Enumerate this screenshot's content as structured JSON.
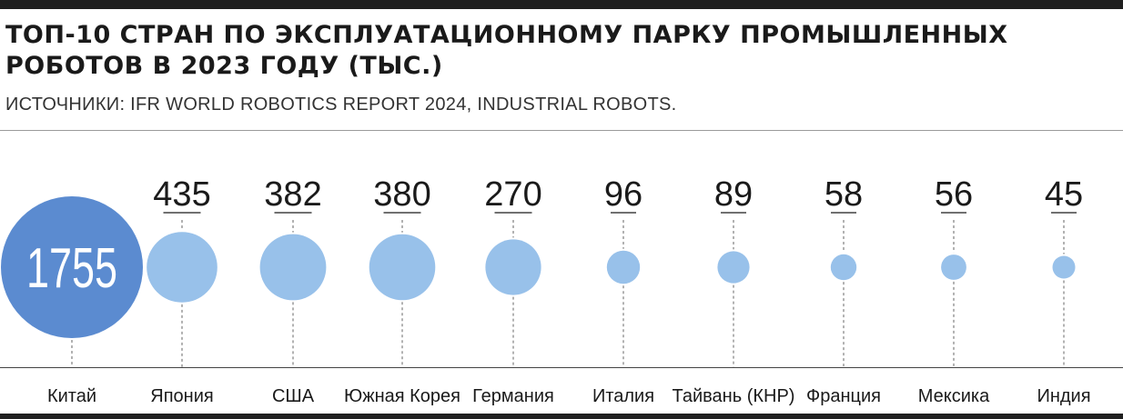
{
  "header": {
    "title": "ТОП-10 СТРАН ПО ЭКСПЛУАТАЦИОННОМУ ПАРКУ ПРОМЫШЛЕННЫХ РОБОТОВ В 2023 ГОДУ (ТЫС.)",
    "source": "ИСТОЧНИКИ: IFR WORLD ROBOTICS REPORT 2024, INDUSTRIAL ROBOTS."
  },
  "colors": {
    "highlight": "#5b8bd0",
    "bubble": "#98c1ea",
    "text": "#1a1a1a",
    "dash": "#666666"
  },
  "chart_data": {
    "type": "bubble",
    "title": "ТОП-10 СТРАН ПО ЭКСПЛУАТАЦИОННОМУ ПАРКУ ПРОМЫШЛЕННЫХ РОБОТОВ В 2023 ГОДУ (ТЫС.)",
    "unit": "тыс.",
    "categories": [
      "Китай",
      "Япония",
      "США",
      "Южная Корея",
      "Германия",
      "Италия",
      "Тайвань (КНР)",
      "Франция",
      "Мексика",
      "Индия"
    ],
    "values": [
      1755,
      435,
      382,
      380,
      270,
      96,
      89,
      58,
      56,
      45
    ],
    "highlight_index": 0,
    "grid": false,
    "legend": "none"
  }
}
